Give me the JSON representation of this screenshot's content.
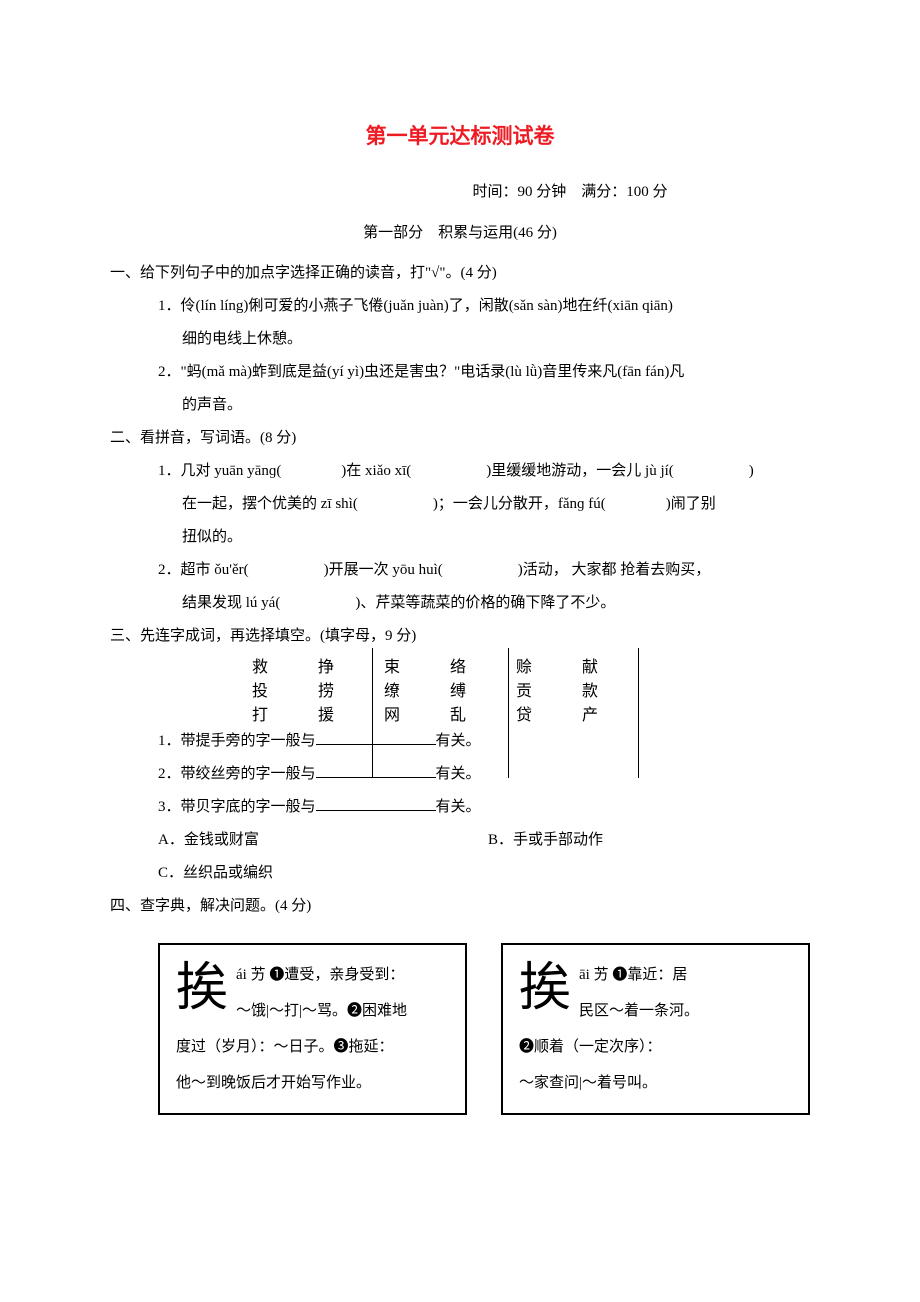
{
  "doc": {
    "title": "第一单元达标测试卷",
    "timing": "时间：90 分钟　满分：100 分",
    "part_header": "第一部分　积累与运用(46 分)",
    "title_color": "#ed1c24",
    "text_color": "#000000",
    "bg_color": "#ffffff",
    "font_family": "SimSun",
    "font_size_body": 15,
    "font_size_title": 21,
    "line_height": 2.2
  },
  "q1": {
    "header": "一、给下列句子中的加点字选择正确的读音，打\"√\"。(4 分)",
    "item1": "1．伶(lín líng)俐可爱的小燕子飞倦(juǎn juàn)了，闲散(sǎn sàn)地在纤(xiān qiān)",
    "item1_cont": "细的电线上休憩。",
    "item2": "2．\"蚂(mǎ mà)蚱到底是益(yí yì)虫还是害虫？\"电话录(lù lǜ)音里传来凡(fān fán)凡",
    "item2_cont": "的声音。"
  },
  "q2": {
    "header": "二、看拼音，写词语。(8 分)",
    "item1a": "1．几对 yuān yānɡ(　　　　)在 xiǎo xī(　　　　　)里缓缓地游动，一会儿 jù jí(　　　　　)",
    "item1b": "在一起，摆个优美的 zī shì(　　　　　)；一会儿分散开，fǎnɡ fú(　　　　)闹了别",
    "item1c": "扭似的。",
    "item2a": "2．超市 ǒu'ěr(　　　　　)开展一次 yōu huì(　　　　　)活动， 大家都 抢着去购买，",
    "item2b": "结果发现 lú yá(　　　　　)、芹菜等蔬菜的价格的确下降了不少。"
  },
  "q3": {
    "header": "三、先连字成词，再选择填空。(填字母，9 分)",
    "row1": [
      "救",
      "挣",
      "束",
      "络",
      "赊",
      "献"
    ],
    "row2": [
      "投",
      "捞",
      "缭",
      "缚",
      "贡",
      "款"
    ],
    "row3": [
      "打",
      "援",
      "网",
      "乱",
      "贷",
      "产"
    ],
    "sub1_pre": "1．带提手旁的字一般与",
    "sub1_post": "有关。",
    "sub2_pre": "2．带绞丝旁的字一般与",
    "sub2_post": "有关。",
    "sub3_pre": "3．带贝字底的字一般与",
    "sub3_post": "有关。",
    "optA": "A．金钱或财富",
    "optB": "B．手或手部动作",
    "optC": "C．丝织品或编织"
  },
  "q4": {
    "header": "四、查字典，解决问题。(4 分)",
    "box1": {
      "char": "挨",
      "pinyin": "ái 艻",
      "line1": "❶遭受，亲身受到：",
      "line2": "～饿|～打|～骂。❷困难地",
      "line3": "度过（岁月）：～日子。❸拖延：",
      "line4": "他～到晚饭后才开始写作业。"
    },
    "box2": {
      "char": "挨",
      "pinyin": "āi 艻",
      "line1": "❶靠近：居",
      "line2": "民区～着一条河。",
      "line3": "❷顺着（一定次序）：",
      "line4": "～家查问|～着号叫。"
    }
  }
}
